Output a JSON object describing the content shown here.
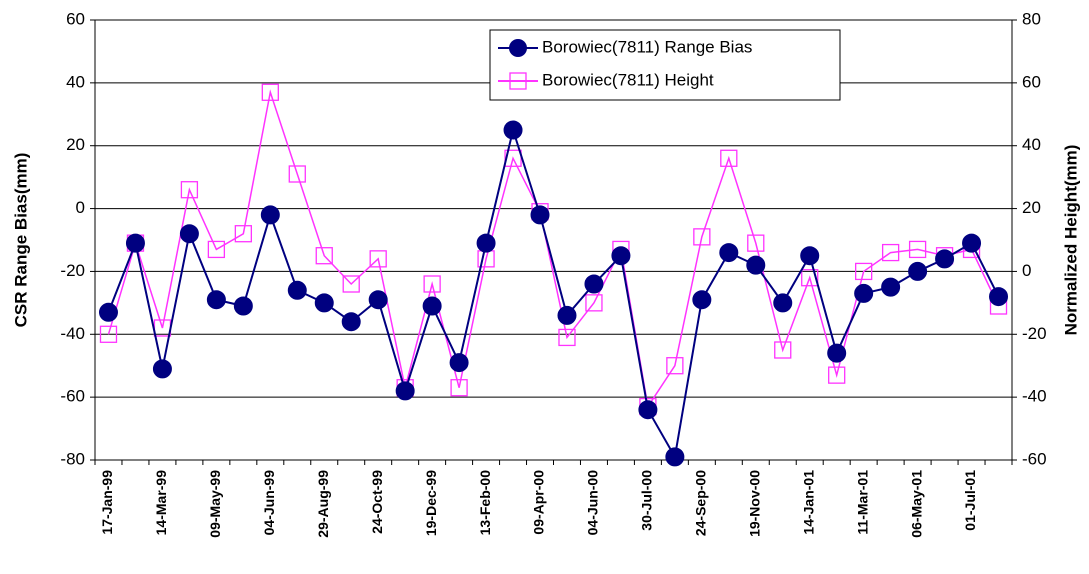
{
  "chart_data": {
    "type": "line",
    "y_label": "CSR Range Bias(mm)",
    "y2_label": "Normalized Height(mm)",
    "categories": [
      "17-Jan-99",
      null,
      "14-Mar-99",
      null,
      "09-May-99",
      null,
      "04-Jun-99",
      null,
      "29-Aug-99",
      null,
      "24-Oct-99",
      null,
      "19-Dec-99",
      null,
      "13-Feb-00",
      null,
      "09-Apr-00",
      null,
      "04-Jun-00",
      null,
      "30-Jul-00",
      null,
      "24-Sep-00",
      null,
      "19-Nov-00",
      null,
      "14-Jan-01",
      null,
      "11-Mar-01",
      null,
      "06-May-01",
      null,
      "01-Jul-01",
      null
    ],
    "series": [
      {
        "name": "Borowiec(7811) Range Bias",
        "color": "#000080",
        "marker": "circle",
        "values": [
          -33,
          -11,
          -51,
          -8,
          -29,
          -31,
          -2,
          -26,
          -30,
          -36,
          -29,
          -58,
          -31,
          -49,
          -11,
          25,
          -2,
          -34,
          -24,
          -15,
          -64,
          -79,
          -29,
          -14,
          -18,
          -30,
          -15,
          -46,
          -27,
          -25,
          -20,
          -16,
          -11,
          -28
        ]
      },
      {
        "name": "Borowiec(7811) Height",
        "color": "#ff33ff",
        "marker": "square",
        "axis": "y2",
        "values": [
          -20,
          9,
          -18,
          26,
          7,
          12,
          57,
          31,
          5,
          -4,
          4,
          -37,
          -4,
          -37,
          4,
          36,
          19,
          -21,
          -10,
          7,
          -43,
          -30,
          11,
          36,
          9,
          -25,
          -2,
          -33,
          0,
          6,
          7,
          5,
          7,
          -11
        ]
      }
    ],
    "ylim": [
      -80,
      60
    ],
    "yticks": [
      -80,
      -60,
      -40,
      -20,
      0,
      20,
      40,
      60
    ],
    "y2lim": [
      -60,
      80
    ],
    "y2ticks": [
      -60,
      -40,
      -20,
      0,
      20,
      40,
      60,
      80
    ],
    "grid": true,
    "legend": "top-right"
  }
}
